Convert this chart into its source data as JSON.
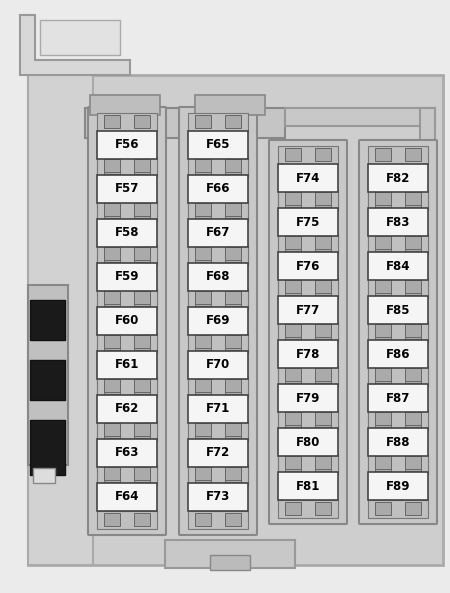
{
  "bg_outer": "#e8e8e8",
  "bg_panel": "#d0d0d0",
  "bg_inner": "#c8c8c8",
  "fuse_white": "#f8f8f8",
  "fuse_border": "#444444",
  "connector_color": "#b0b0b0",
  "connector_dark": "#888888",
  "housing_color": "#bebebe",
  "rail_color": "#c0c0c0",
  "dark_connector": "#222222",
  "label_color": "#000000",
  "columns": [
    {
      "fuses": [
        "F56",
        "F57",
        "F58",
        "F59",
        "F60",
        "F61",
        "F62",
        "F63",
        "F64"
      ],
      "col_idx": 0
    },
    {
      "fuses": [
        "F65",
        "F66",
        "F67",
        "F68",
        "F69",
        "F70",
        "F71",
        "F72",
        "F73"
      ],
      "col_idx": 1
    },
    {
      "fuses": [
        "F74",
        "F75",
        "F76",
        "F77",
        "F78",
        "F79",
        "F80",
        "F81"
      ],
      "col_idx": 2
    },
    {
      "fuses": [
        "F82",
        "F83",
        "F84",
        "F85",
        "F86",
        "F87",
        "F88",
        "F89"
      ],
      "col_idx": 3
    }
  ],
  "figsize": [
    4.5,
    5.93
  ],
  "dpi": 100
}
